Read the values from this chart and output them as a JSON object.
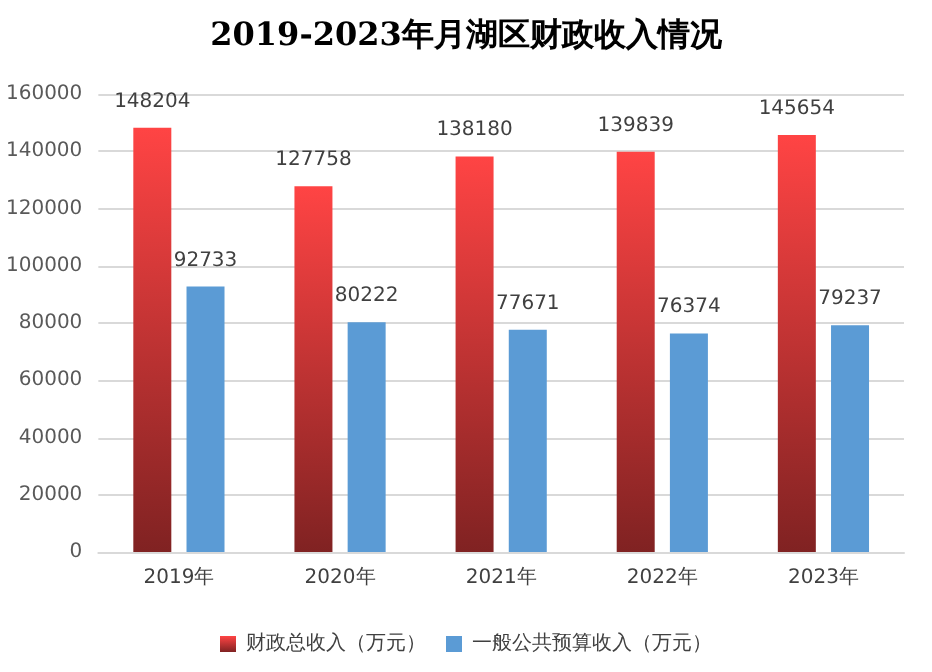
{
  "chart_data": {
    "type": "bar",
    "title": "2019-2023年月湖区财政收入情况",
    "categories": [
      "2019年",
      "2020年",
      "2021年",
      "2022年",
      "2023年"
    ],
    "series": [
      {
        "name": "财政总收入（万元）",
        "color": "#ff4444",
        "values": [
          148204,
          127758,
          138180,
          139839,
          145654
        ]
      },
      {
        "name": "一般公共预算收入（万元）",
        "color": "#5b9bd5",
        "values": [
          92733,
          80222,
          77671,
          76374,
          79237
        ]
      }
    ],
    "ylim": [
      0,
      160000
    ],
    "yticks": [
      0,
      20000,
      40000,
      60000,
      80000,
      100000,
      120000,
      140000,
      160000
    ],
    "grid": "y",
    "legend": "bottom",
    "data_labels": true
  }
}
